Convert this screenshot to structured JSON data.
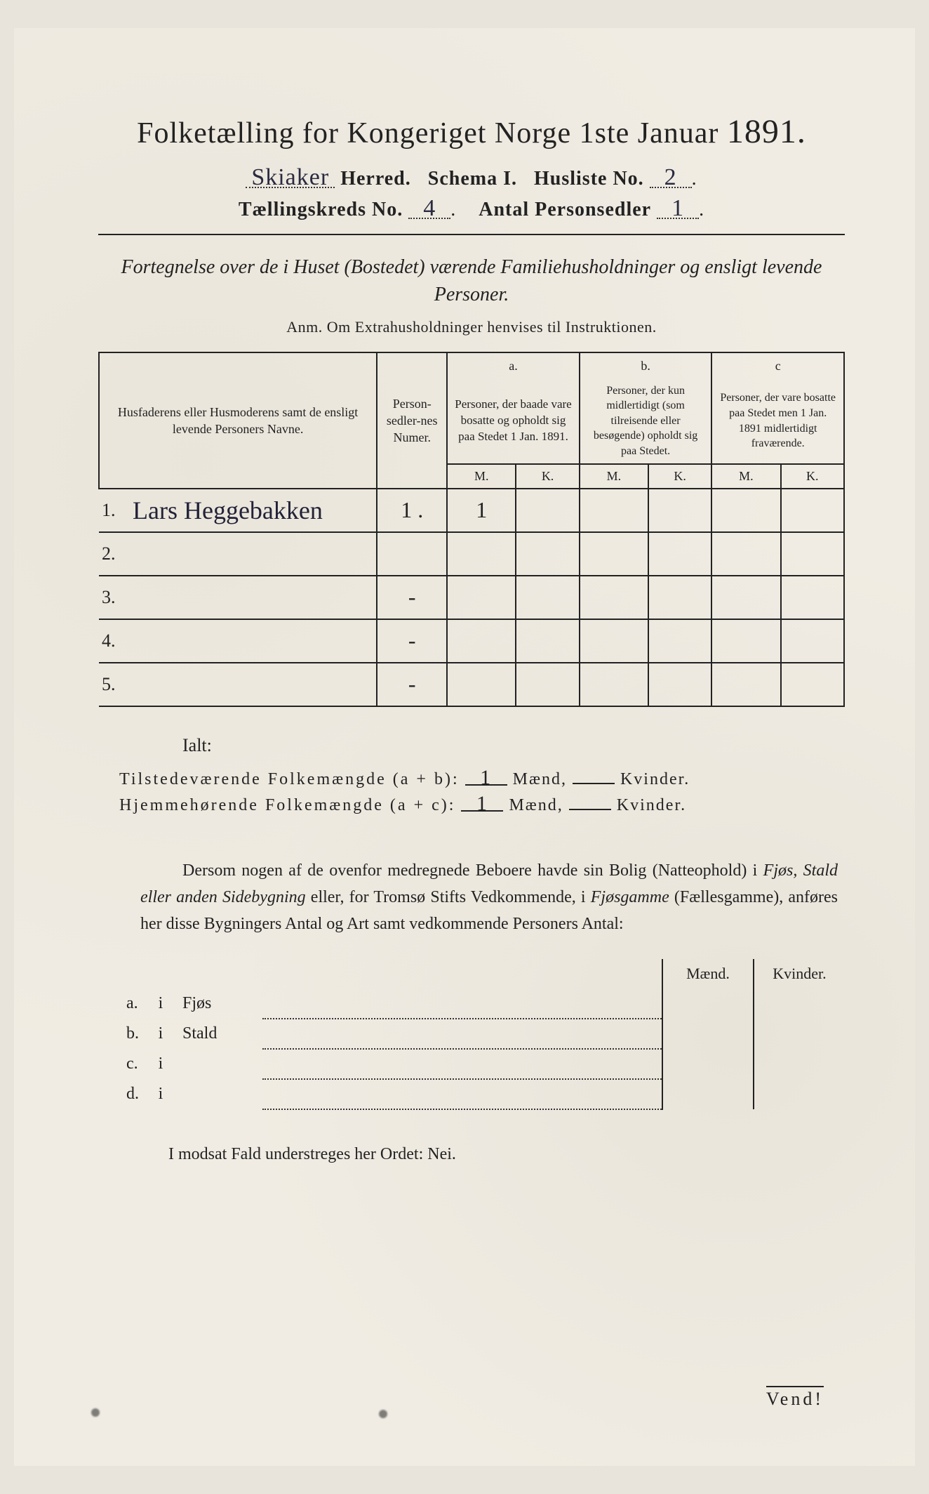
{
  "header": {
    "title_prefix": "Folketælling for Kongeriget Norge 1ste Januar",
    "year": "1891.",
    "herred_value": "Skiaker",
    "herred_label": "Herred.",
    "schema_label": "Schema I.",
    "husliste_label": "Husliste No.",
    "husliste_value": "2",
    "kreds_label": "Tællingskreds No.",
    "kreds_value": "4",
    "sedler_label": "Antal Personsedler",
    "sedler_value": "1"
  },
  "subtitle": "Fortegnelse over de i Huset (Bostedet) værende Familiehusholdninger og ensligt levende Personer.",
  "anm": "Anm. Om Extrahusholdninger henvises til Instruktionen.",
  "table": {
    "col1": "Husfaderens eller Husmoderens samt de ensligt levende Personers Navne.",
    "col2": "Person-sedler-nes Numer.",
    "col_a_letter": "a.",
    "col_a": "Personer, der baade vare bosatte og opholdt sig paa Stedet 1 Jan. 1891.",
    "col_b_letter": "b.",
    "col_b": "Personer, der kun midlertidigt (som tilreisende eller besøgende) opholdt sig paa Stedet.",
    "col_c_letter": "c",
    "col_c": "Personer, der vare bosatte paa Stedet men 1 Jan. 1891 midlertidigt fraværende.",
    "M": "M.",
    "K": "K.",
    "rows": [
      {
        "n": "1.",
        "name": "Lars Heggebakken",
        "num": "1 .",
        "aM": "1",
        "aK": "",
        "bM": "",
        "bK": "",
        "cM": "",
        "cK": ""
      },
      {
        "n": "2.",
        "name": "",
        "num": "",
        "aM": "",
        "aK": "",
        "bM": "",
        "bK": "",
        "cM": "",
        "cK": ""
      },
      {
        "n": "3.",
        "name": "",
        "num": "-",
        "aM": "",
        "aK": "",
        "bM": "",
        "bK": "",
        "cM": "",
        "cK": ""
      },
      {
        "n": "4.",
        "name": "",
        "num": "-",
        "aM": "",
        "aK": "",
        "bM": "",
        "bK": "",
        "cM": "",
        "cK": ""
      },
      {
        "n": "5.",
        "name": "",
        "num": "-",
        "aM": "",
        "aK": "",
        "bM": "",
        "bK": "",
        "cM": "",
        "cK": ""
      }
    ]
  },
  "totals": {
    "ialt": "Ialt:",
    "line1_label": "Tilstedeværende Folkemængde (a + b):",
    "line2_label": "Hjemmehørende Folkemængde (a + c):",
    "maend": "Mænd,",
    "kvinder": "Kvinder.",
    "line1_m": "1",
    "line1_k": "",
    "line2_m": "1",
    "line2_k": ""
  },
  "para": {
    "text1": "Dersom nogen af de ovenfor medregnede Beboere havde sin Bolig (Natteophold) i ",
    "it1": "Fjøs, Stald eller anden Sidebygning",
    "text2": " eller, for Tromsø Stifts Vedkommende, i ",
    "it2": "Fjøsgamme",
    "text3": " (Fællesgamme), anføres her disse Bygningers Antal og Art samt vedkommende Personers Antal:"
  },
  "subtable": {
    "maend": "Mænd.",
    "kvinder": "Kvinder.",
    "rows": [
      {
        "letter": "a.",
        "i": "i",
        "label": "Fjøs"
      },
      {
        "letter": "b.",
        "i": "i",
        "label": "Stald"
      },
      {
        "letter": "c.",
        "i": "i",
        "label": ""
      },
      {
        "letter": "d.",
        "i": "i",
        "label": ""
      }
    ]
  },
  "nei": "I modsat Fald understreges her Ordet: Nei.",
  "vend": "Vend!",
  "colors": {
    "paper": "#f0ece3",
    "ink": "#222222",
    "script": "#2a2a40"
  }
}
